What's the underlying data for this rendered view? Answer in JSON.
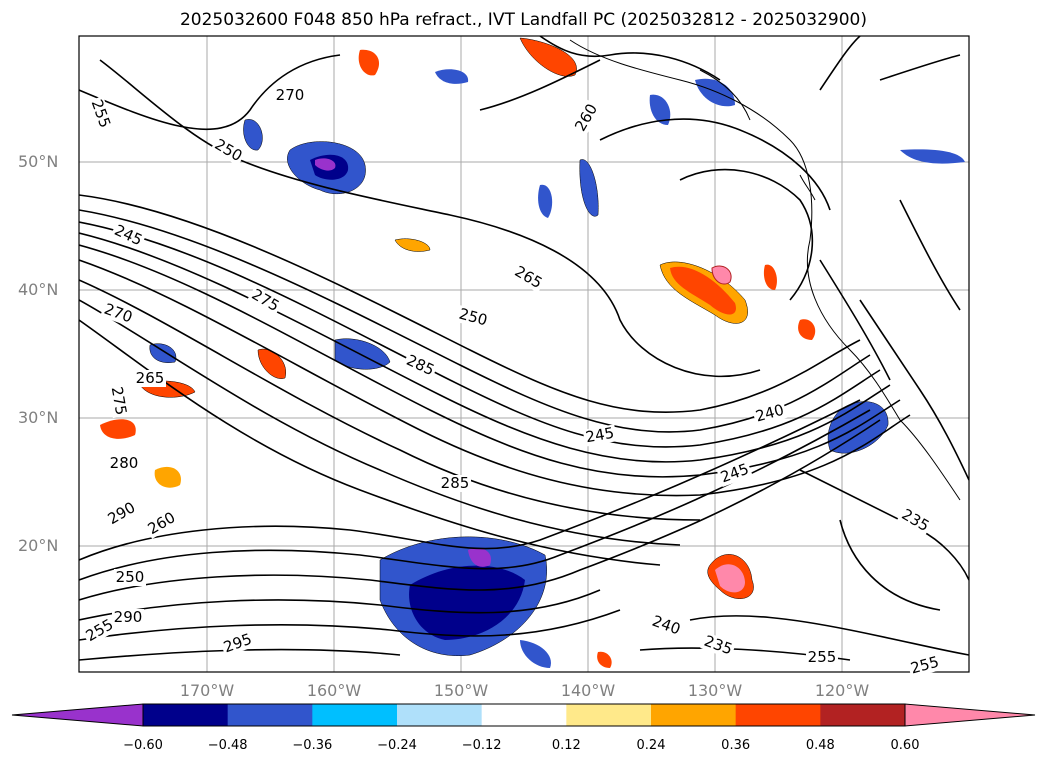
{
  "title": "2025032600 F048 850 hPa refract., IVT Landfall PC (2025032812 - 2025032900)",
  "map": {
    "lat_labels": [
      "50°N",
      "40°N",
      "30°N",
      "20°N"
    ],
    "lon_labels": [
      "170°W",
      "160°W",
      "150°W",
      "140°W",
      "130°W",
      "120°W"
    ],
    "contour_labels": [
      "255",
      "250",
      "245",
      "270",
      "265",
      "275",
      "280",
      "290",
      "260",
      "285",
      "250",
      "295",
      "255",
      "290",
      "270",
      "265",
      "260",
      "275",
      "250",
      "285",
      "245",
      "240",
      "245",
      "235",
      "240",
      "235",
      "255",
      "255"
    ]
  },
  "colorbar": {
    "ticks": [
      "−0.60",
      "−0.48",
      "−0.36",
      "−0.24",
      "−0.12",
      "0.12",
      "0.24",
      "0.36",
      "0.48",
      "0.60"
    ],
    "colors": [
      "#9932cc",
      "#00008b",
      "#3155cc",
      "#00bfff",
      "#afe0fa",
      "#ffffff",
      "#ffe98a",
      "#ffa500",
      "#ff4500",
      "#b22222",
      "#ff88aa"
    ]
  }
}
